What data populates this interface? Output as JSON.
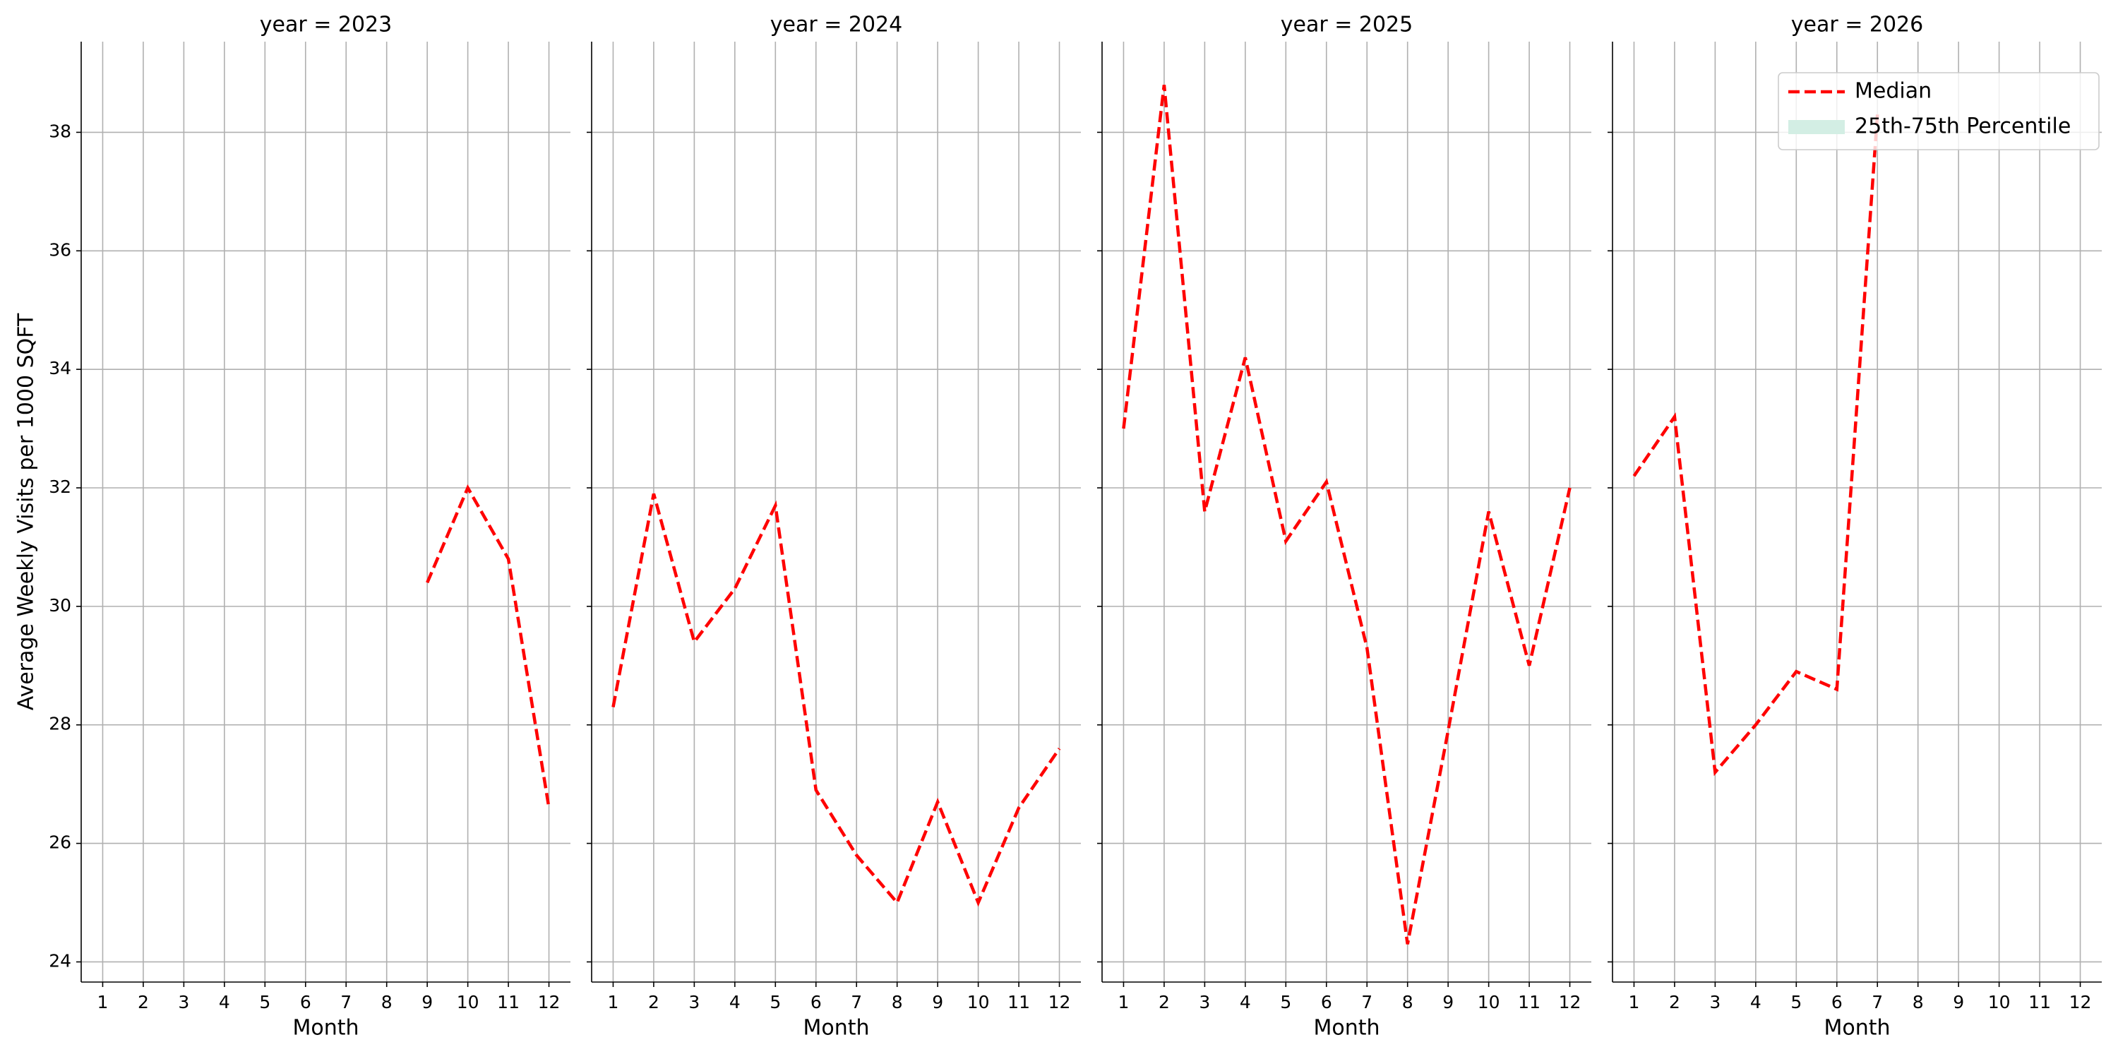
{
  "chart_data": [
    {
      "type": "line",
      "title": "year = 2023",
      "xlabel": "Month",
      "ylabel": "Average Weekly Visits per 1000 SQFT",
      "x": [
        1,
        2,
        3,
        4,
        5,
        6,
        7,
        8,
        9,
        10,
        11,
        12
      ],
      "xlim": [
        0.47,
        12.53
      ],
      "xticks": [
        1,
        2,
        3,
        4,
        5,
        6,
        7,
        8,
        9,
        10,
        11,
        12
      ],
      "ylim": [
        23.66,
        39.53
      ],
      "yticks": [
        24,
        26,
        28,
        30,
        32,
        34,
        36,
        38
      ],
      "grid": true,
      "series": [
        {
          "name": "Median",
          "color": "#ff0000",
          "values": [
            null,
            null,
            null,
            null,
            null,
            null,
            null,
            null,
            30.4,
            32.0,
            30.8,
            26.6
          ]
        }
      ]
    },
    {
      "type": "line",
      "title": "year = 2024",
      "xlabel": "Month",
      "x": [
        1,
        2,
        3,
        4,
        5,
        6,
        7,
        8,
        9,
        10,
        11,
        12
      ],
      "xlim": [
        0.47,
        12.53
      ],
      "xticks": [
        1,
        2,
        3,
        4,
        5,
        6,
        7,
        8,
        9,
        10,
        11,
        12
      ],
      "ylim": [
        23.66,
        39.53
      ],
      "yticks": [
        24,
        26,
        28,
        30,
        32,
        34,
        36,
        38
      ],
      "grid": true,
      "series": [
        {
          "name": "Median",
          "color": "#ff0000",
          "values": [
            28.3,
            31.9,
            29.4,
            30.3,
            31.7,
            26.9,
            25.8,
            25.0,
            26.7,
            25.0,
            26.6,
            27.6
          ]
        }
      ]
    },
    {
      "type": "line",
      "title": "year = 2025",
      "xlabel": "Month",
      "x": [
        1,
        2,
        3,
        4,
        5,
        6,
        7,
        8,
        9,
        10,
        11,
        12
      ],
      "xlim": [
        0.47,
        12.53
      ],
      "xticks": [
        1,
        2,
        3,
        4,
        5,
        6,
        7,
        8,
        9,
        10,
        11,
        12
      ],
      "ylim": [
        23.66,
        39.53
      ],
      "yticks": [
        24,
        26,
        28,
        30,
        32,
        34,
        36,
        38
      ],
      "grid": true,
      "series": [
        {
          "name": "Median",
          "color": "#ff0000",
          "values": [
            33.0,
            38.8,
            31.6,
            34.2,
            31.1,
            32.1,
            29.3,
            24.3,
            27.9,
            31.6,
            29.0,
            32.0
          ]
        }
      ]
    },
    {
      "type": "line",
      "title": "year = 2026",
      "xlabel": "Month",
      "x": [
        1,
        2,
        3,
        4,
        5,
        6,
        7,
        8,
        9,
        10,
        11,
        12
      ],
      "xlim": [
        0.47,
        12.53
      ],
      "xticks": [
        1,
        2,
        3,
        4,
        5,
        6,
        7,
        8,
        9,
        10,
        11,
        12
      ],
      "ylim": [
        23.66,
        39.53
      ],
      "yticks": [
        24,
        26,
        28,
        30,
        32,
        34,
        36,
        38
      ],
      "grid": true,
      "legend": "upper right",
      "series": [
        {
          "name": "Median",
          "color": "#ff0000",
          "values": [
            32.2,
            33.2,
            27.2,
            28.0,
            28.9,
            28.6,
            38.3,
            null,
            null,
            null,
            null,
            null
          ]
        },
        {
          "name": "25th-75th Percentile",
          "color": "#d3eee4"
        }
      ]
    }
  ]
}
